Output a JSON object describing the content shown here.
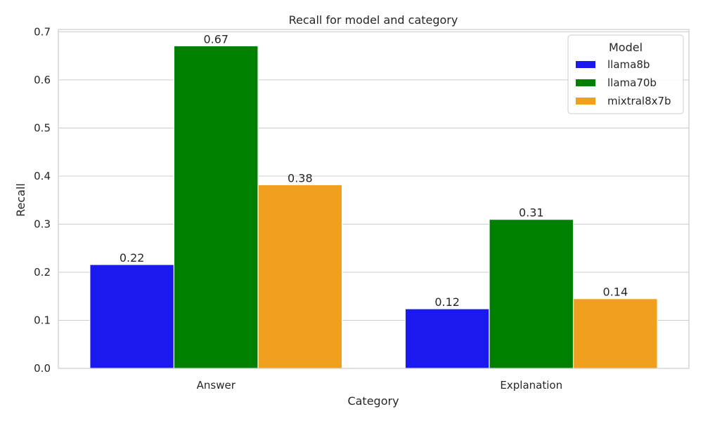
{
  "chart_data": {
    "type": "bar",
    "title": "Recall for model and category",
    "xlabel": "Category",
    "ylabel": "Recall",
    "categories": [
      "Answer",
      "Explanation"
    ],
    "series": [
      {
        "name": "llama8b",
        "color": "#1a1aee",
        "values": [
          0.216,
          0.124
        ],
        "labels": [
          "0.22",
          "0.12"
        ]
      },
      {
        "name": "llama70b",
        "color": "#008000",
        "values": [
          0.671,
          0.31
        ],
        "labels": [
          "0.67",
          "0.31"
        ]
      },
      {
        "name": "mixtral8x7b",
        "color": "#f0a01c",
        "values": [
          0.382,
          0.145
        ],
        "labels": [
          "0.38",
          "0.14"
        ]
      }
    ],
    "ylim": [
      0,
      0.705
    ],
    "yticks": [
      0.0,
      0.1,
      0.2,
      0.3,
      0.4,
      0.5,
      0.6,
      0.7
    ],
    "ytick_labels": [
      "0.0",
      "0.1",
      "0.2",
      "0.3",
      "0.4",
      "0.5",
      "0.6",
      "0.7"
    ],
    "grid": true,
    "legend": {
      "title": "Model",
      "placement": "top-right"
    }
  }
}
